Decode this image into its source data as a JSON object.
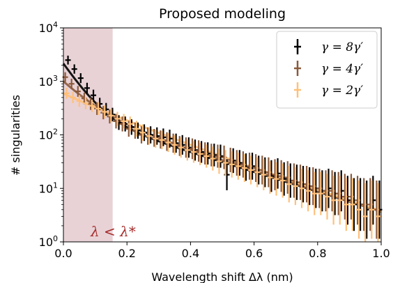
{
  "chart_data": {
    "type": "scatter",
    "title": "Proposed modeling",
    "xlabel": "Wavelength shift Δλ (nm)",
    "ylabel": "# singularities",
    "xlim": [
      0,
      1.0
    ],
    "ylim": [
      1,
      10000
    ],
    "yscale": "log",
    "grid": false,
    "legend_position": "top-right",
    "x_ticks": [
      "0.0",
      "0.2",
      "0.4",
      "0.6",
      "0.8",
      "1.0"
    ],
    "y_ticks": [
      {
        "base": "10",
        "exp": "0"
      },
      {
        "base": "10",
        "exp": "1"
      },
      {
        "base": "10",
        "exp": "2"
      },
      {
        "base": "10",
        "exp": "3"
      },
      {
        "base": "10",
        "exp": "4"
      }
    ],
    "shaded_region": {
      "x": [
        0,
        0.155
      ],
      "color": "#e8d2d6",
      "label": "λ < λ*"
    },
    "x": [
      0.01,
      0.03,
      0.05,
      0.07,
      0.09,
      0.11,
      0.13,
      0.15,
      0.17,
      0.19,
      0.21,
      0.23,
      0.25,
      0.27,
      0.29,
      0.31,
      0.33,
      0.35,
      0.37,
      0.39,
      0.41,
      0.43,
      0.45,
      0.47,
      0.49,
      0.51,
      0.53,
      0.55,
      0.57,
      0.59,
      0.61,
      0.63,
      0.65,
      0.67,
      0.69,
      0.71,
      0.73,
      0.75,
      0.77,
      0.79,
      0.81,
      0.83,
      0.85,
      0.87,
      0.89,
      0.91,
      0.93,
      0.95,
      0.97,
      0.99
    ],
    "series": [
      {
        "name": "γ = 8γ′",
        "color": "#000000",
        "values": [
          2500,
          1700,
          1150,
          750,
          550,
          380,
          300,
          240,
          170,
          160,
          140,
          120,
          110,
          100,
          95,
          90,
          85,
          70,
          65,
          58,
          52,
          48,
          45,
          42,
          40,
          18,
          33,
          30,
          25,
          26,
          22,
          20,
          17,
          19,
          15,
          14,
          13,
          12,
          11,
          10,
          9,
          10,
          8,
          9,
          6,
          5,
          5,
          4,
          6,
          4
        ],
        "fit": {
          "a": 1900,
          "k1": 21,
          "b": 260,
          "k2": 4.25
        }
      },
      {
        "name": "γ = 4γ′",
        "color": "#8b5a3c",
        "values": [
          1200,
          900,
          650,
          480,
          380,
          310,
          260,
          220,
          180,
          160,
          130,
          120,
          100,
          95,
          88,
          82,
          75,
          70,
          62,
          58,
          55,
          50,
          45,
          42,
          40,
          38,
          34,
          30,
          28,
          26,
          24,
          22,
          20,
          18,
          17,
          16,
          14,
          13,
          12,
          11,
          10,
          9,
          9,
          8,
          7,
          7,
          6,
          5,
          5,
          4
        ],
        "fit": {
          "a": 700,
          "k1": 15,
          "b": 300,
          "k2": 4.4
        }
      },
      {
        "name": "γ = 2γ′",
        "color": "#ffc07a",
        "values": [
          600,
          500,
          430,
          390,
          350,
          310,
          270,
          230,
          200,
          180,
          160,
          130,
          110,
          95,
          85,
          80,
          72,
          65,
          58,
          52,
          48,
          44,
          40,
          36,
          32,
          30,
          28,
          26,
          24,
          22,
          20,
          18,
          16,
          15,
          14,
          12,
          11,
          10,
          9,
          8,
          8,
          7,
          6,
          6,
          5,
          5,
          4,
          3,
          4,
          3
        ],
        "fit": {
          "a": 260,
          "k1": 8,
          "b": 330,
          "k2": 4.5
        }
      }
    ]
  }
}
